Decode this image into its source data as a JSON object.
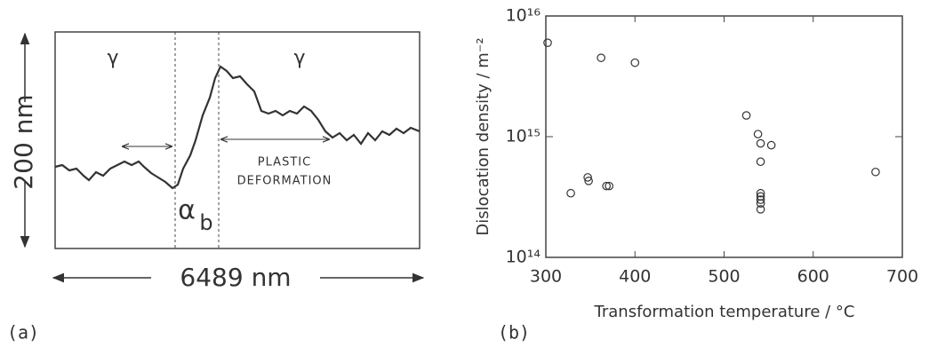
{
  "figure_a": {
    "panel_label": "(a)",
    "height_label": "200 nm",
    "width_label": "6489 nm",
    "phase_left": "γ",
    "phase_right": "γ",
    "bainite_symbol": "α",
    "bainite_subscript": "b",
    "annotation_line1": "PLASTIC",
    "annotation_line2": "DEFORMATION"
  },
  "chart_data": {
    "type": "scatter",
    "panel_label": "(b)",
    "x_label": "Transformation temperature / °C",
    "y_label": "Dislocation density / m⁻²",
    "x": [
      302,
      328,
      347,
      348,
      362,
      368,
      371,
      400,
      525,
      538,
      541,
      553,
      541,
      541,
      541,
      541,
      541,
      541,
      670
    ],
    "values": [
      6000000000000000.0,
      340000000000000.0,
      460000000000000.0,
      430000000000000.0,
      4500000000000000.0,
      390000000000000.0,
      390000000000000.0,
      4100000000000000.0,
      1500000000000000.0,
      1050000000000000.0,
      880000000000000.0,
      850000000000000.0,
      620000000000000.0,
      340000000000000.0,
      320000000000000.0,
      300000000000000.0,
      280000000000000.0,
      250000000000000.0,
      510000000000000.0
    ],
    "color": "#333333",
    "yscale": "log",
    "xlim": [
      300,
      700
    ],
    "xticks": [
      300,
      400,
      500,
      600,
      700
    ],
    "ylim": [
      100000000000000.0,
      1e+16
    ],
    "yticks": [
      {
        "value": 100000000000000.0,
        "label": "10¹⁴"
      },
      {
        "value": 1000000000000000.0,
        "label": "10¹⁵"
      },
      {
        "value": 1e+16,
        "label": "10¹⁶"
      }
    ]
  }
}
